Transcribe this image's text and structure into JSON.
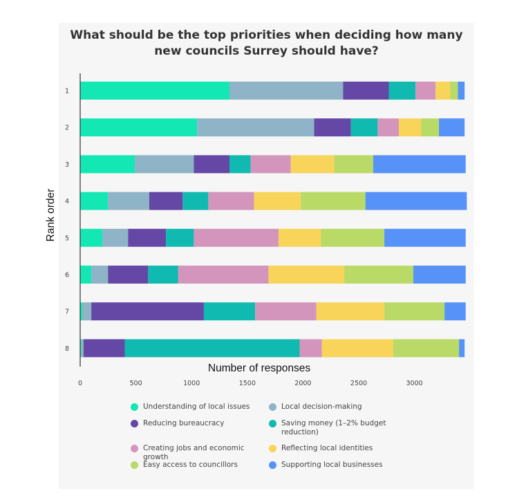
{
  "chart_data": {
    "type": "bar",
    "orientation": "horizontal",
    "stacked": true,
    "title_lines": [
      "What should be the top priorities when deciding how many",
      "new councils Surrey should have?"
    ],
    "xlabel": "Number of responses",
    "ylabel": "Rank order",
    "xlim": [
      0,
      3450
    ],
    "xticks": [
      "0",
      "500",
      "1000",
      "1500",
      "2000",
      "2500",
      "3000"
    ],
    "categories": [
      "1",
      "2",
      "3",
      "4",
      "5",
      "6",
      "7",
      "8"
    ],
    "series": [
      {
        "name": "Understanding of local issues",
        "color": "#13e8b4",
        "values": [
          1340,
          1050,
          490,
          250,
          200,
          100,
          20,
          10
        ]
      },
      {
        "name": "Local decision-making",
        "color": "#8fb3c7",
        "values": [
          1020,
          1050,
          530,
          370,
          230,
          150,
          80,
          20
        ]
      },
      {
        "name": "Reducing bureaucracy",
        "color": "#6547a6",
        "values": [
          410,
          330,
          320,
          300,
          340,
          360,
          1010,
          370
        ]
      },
      {
        "name": "Saving money (1–2% budget reduction)",
        "color": "#10bab0",
        "values": [
          240,
          240,
          190,
          230,
          250,
          270,
          460,
          1570
        ]
      },
      {
        "name": "Creating jobs and economic growth",
        "color": "#d495bd",
        "values": [
          180,
          190,
          360,
          410,
          760,
          810,
          550,
          200
        ]
      },
      {
        "name": "Reflecting local identities",
        "color": "#f8d45a",
        "values": [
          130,
          200,
          390,
          420,
          380,
          680,
          610,
          640
        ]
      },
      {
        "name": "Easy access to councillors",
        "color": "#b9da67",
        "values": [
          70,
          160,
          350,
          580,
          570,
          620,
          540,
          590
        ]
      },
      {
        "name": "Supporting local businesses",
        "color": "#5792f8",
        "values": [
          60,
          230,
          830,
          910,
          730,
          470,
          190,
          50
        ]
      }
    ]
  }
}
